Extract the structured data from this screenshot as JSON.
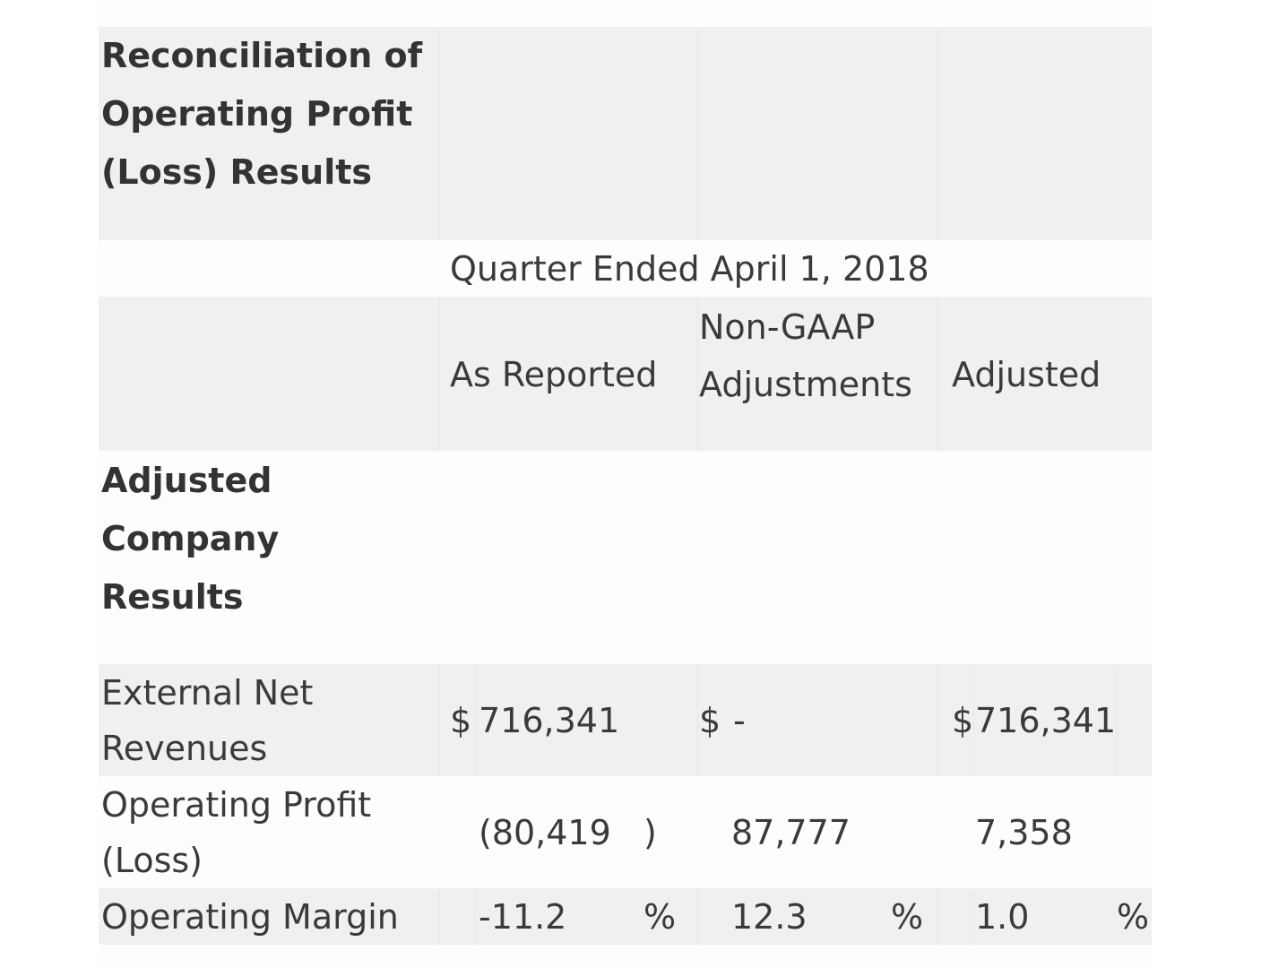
{
  "table": {
    "section_title": "Reconciliation of Operating Profit (Loss) Results",
    "section_title_lines": [
      "Reconciliation of",
      "Operating Profit",
      "(Loss) Results"
    ],
    "period_header": "Quarter Ended April 1, 2018",
    "columns": {
      "as_reported": "As Reported",
      "non_gaap_lines": [
        "Non-GAAP",
        "Adjustments"
      ],
      "adjusted": "Adjusted"
    },
    "subsection_title_lines": [
      "Adjusted",
      "Company",
      "Results"
    ],
    "rows": [
      {
        "label_lines": [
          "External Net",
          "Revenues"
        ],
        "as_reported": {
          "prefix": "$",
          "value": "716,341",
          "suffix": ""
        },
        "non_gaap": {
          "prefix": "$",
          "value": "-",
          "suffix": ""
        },
        "adjusted": {
          "prefix": "$",
          "value": "716,341",
          "suffix": ""
        }
      },
      {
        "label_lines": [
          "Operating Profit",
          "(Loss)"
        ],
        "as_reported": {
          "prefix": "",
          "value": "(80,419",
          "suffix": ")"
        },
        "non_gaap": {
          "prefix": "",
          "value": "87,777",
          "suffix": ""
        },
        "adjusted": {
          "prefix": "",
          "value": "7,358",
          "suffix": ""
        }
      },
      {
        "label_lines": [
          "Operating Margin"
        ],
        "as_reported": {
          "prefix": "",
          "value": "-11.2",
          "suffix": "%"
        },
        "non_gaap": {
          "prefix": "",
          "value": "12.3",
          "suffix": "%"
        },
        "adjusted": {
          "prefix": "",
          "value": "1.0",
          "suffix": "%"
        }
      }
    ]
  }
}
